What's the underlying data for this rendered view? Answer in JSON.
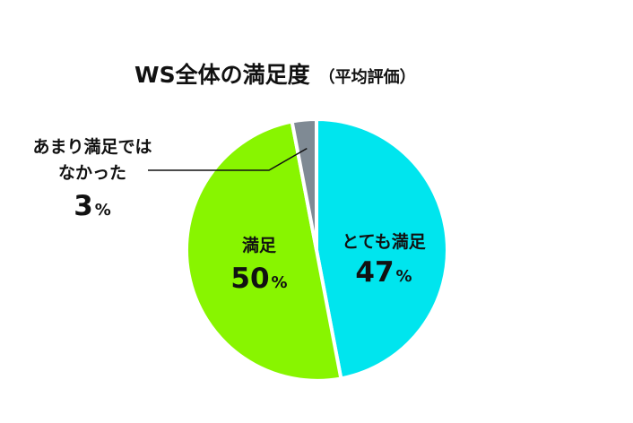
{
  "chart_data": {
    "type": "pie",
    "title": "WS全体の満足度",
    "subtitle": "（平均評価）",
    "unit": "%",
    "slices": [
      {
        "label": "とても満足",
        "value": 47,
        "color": "#00E5EE"
      },
      {
        "label": "満足",
        "value": 50,
        "color": "#88F500"
      },
      {
        "label_lines": [
          "あまり満足では",
          "なかった"
        ],
        "value": 3,
        "color": "#7F8A94"
      }
    ],
    "start": "12 o'clock",
    "direction": "clockwise",
    "slice_border_color": "#ffffff",
    "leader_line_color": "#111111"
  }
}
